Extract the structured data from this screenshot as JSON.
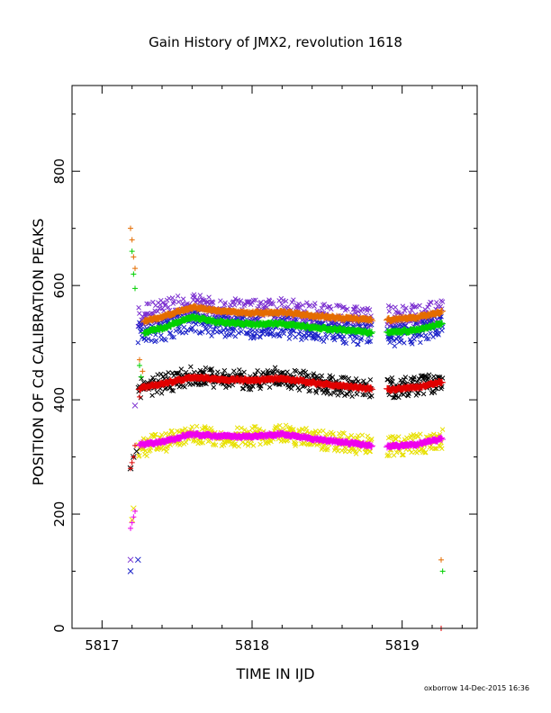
{
  "chart_data": {
    "type": "scatter",
    "title": "Gain History of JMX2, revolution 1618",
    "xlabel": "TIME IN IJD",
    "ylabel": "POSITION OF Cd CALIBRATION PEAKS",
    "footer": "oxborrow 14-Dec-2015 16:36",
    "xlim": [
      5816.8,
      5819.5
    ],
    "ylim": [
      0,
      950
    ],
    "xticks": [
      5817,
      5818,
      5819
    ],
    "xtick_labels": [
      "5817",
      "5818",
      "5819"
    ],
    "yticks": [
      0,
      200,
      400,
      600,
      800
    ],
    "ytick_labels": [
      "0",
      "200",
      "400",
      "600",
      "800"
    ],
    "series": [
      {
        "color": "#e46c00",
        "marker": "plus",
        "x": [
          5817.19,
          5817.2,
          5817.21,
          5817.22,
          5817.25,
          5817.27,
          5819.26
        ],
        "y": [
          700,
          680,
          650,
          630,
          470,
          450,
          120
        ],
        "trend": {
          "start": 5817.28,
          "end": 5819.27,
          "gap": [
            5818.8,
            5818.9
          ],
          "knots": [
            [
              5817.28,
              538
            ],
            [
              5817.4,
              545
            ],
            [
              5817.6,
              562
            ],
            [
              5817.75,
              556
            ],
            [
              5818.0,
              552
            ],
            [
              5818.2,
              553
            ],
            [
              5818.4,
              547
            ],
            [
              5818.6,
              543
            ],
            [
              5818.78,
              540
            ],
            [
              5818.9,
              540
            ],
            [
              5819.1,
              544
            ],
            [
              5819.27,
              554
            ]
          ]
        }
      },
      {
        "color": "#00d000",
        "marker": "plus",
        "x": [
          5817.2,
          5817.21,
          5817.22,
          5817.25,
          5817.26,
          5819.27
        ],
        "y": [
          660,
          620,
          595,
          460,
          440,
          100
        ],
        "trend": {
          "start": 5817.28,
          "end": 5819.27,
          "gap": [
            5818.8,
            5818.9
          ],
          "knots": [
            [
              5817.28,
              518
            ],
            [
              5817.4,
              525
            ],
            [
              5817.6,
              545
            ],
            [
              5817.75,
              537
            ],
            [
              5818.0,
              532
            ],
            [
              5818.2,
              533
            ],
            [
              5818.4,
              527
            ],
            [
              5818.6,
              522
            ],
            [
              5818.78,
              518
            ],
            [
              5818.9,
              518
            ],
            [
              5819.1,
              522
            ],
            [
              5819.27,
              534
            ]
          ]
        }
      },
      {
        "color": "#7b2fd0",
        "marker": "cross",
        "x": [
          5817.19,
          5817.22
        ],
        "y": [
          120,
          390
        ],
        "scatter": {
          "start": 5817.24,
          "end": 5819.27,
          "gap": [
            5818.8,
            5818.9
          ],
          "spread": 25,
          "knots": [
            [
              5817.24,
              548
            ],
            [
              5817.4,
              555
            ],
            [
              5817.6,
              568
            ],
            [
              5817.75,
              560
            ],
            [
              5818.0,
              555
            ],
            [
              5818.2,
              558
            ],
            [
              5818.4,
              550
            ],
            [
              5818.6,
              546
            ],
            [
              5818.78,
              542
            ],
            [
              5818.9,
              545
            ],
            [
              5819.1,
              548
            ],
            [
              5819.27,
              558
            ]
          ]
        }
      },
      {
        "color": "#1a22c8",
        "marker": "cross",
        "x": [
          5817.19,
          5817.24
        ],
        "y": [
          100,
          120
        ],
        "scatter": {
          "start": 5817.24,
          "end": 5819.27,
          "gap": [
            5818.8,
            5818.9
          ],
          "spread": 25,
          "knots": [
            [
              5817.24,
              515
            ],
            [
              5817.4,
              522
            ],
            [
              5817.6,
              540
            ],
            [
              5817.75,
              530
            ],
            [
              5818.0,
              527
            ],
            [
              5818.2,
              528
            ],
            [
              5818.4,
              522
            ],
            [
              5818.6,
              518
            ],
            [
              5818.78,
              514
            ],
            [
              5818.9,
              512
            ],
            [
              5819.1,
              518
            ],
            [
              5819.27,
              530
            ]
          ]
        }
      },
      {
        "color": "#000000",
        "marker": "cross",
        "x": [
          5817.19,
          5817.21,
          5817.23
        ],
        "y": [
          280,
          300,
          310
        ],
        "scatter": {
          "start": 5817.24,
          "end": 5819.27,
          "gap": [
            5818.8,
            5818.9
          ],
          "spread": 22,
          "knots": [
            [
              5817.24,
              420
            ],
            [
              5817.4,
              428
            ],
            [
              5817.6,
              442
            ],
            [
              5817.75,
              436
            ],
            [
              5818.0,
              435
            ],
            [
              5818.2,
              440
            ],
            [
              5818.4,
              430
            ],
            [
              5818.6,
              424
            ],
            [
              5818.78,
              420
            ],
            [
              5818.9,
              420
            ],
            [
              5819.1,
              425
            ],
            [
              5819.27,
              432
            ]
          ]
        }
      },
      {
        "color": "#e00000",
        "marker": "plus",
        "x": [
          5817.19,
          5817.2,
          5817.21,
          5817.22,
          5817.25,
          5819.26
        ],
        "y": [
          280,
          290,
          300,
          320,
          405,
          0
        ],
        "trend": {
          "start": 5817.25,
          "end": 5819.27,
          "gap": [
            5818.8,
            5818.9
          ],
          "knots": [
            [
              5817.25,
              420
            ],
            [
              5817.4,
              428
            ],
            [
              5817.6,
              440
            ],
            [
              5817.75,
              436
            ],
            [
              5818.0,
              434
            ],
            [
              5818.2,
              438
            ],
            [
              5818.4,
              430
            ],
            [
              5818.6,
              424
            ],
            [
              5818.78,
              420
            ],
            [
              5818.9,
              418
            ],
            [
              5819.1,
              422
            ],
            [
              5819.27,
              432
            ]
          ]
        }
      },
      {
        "color": "#e8e000",
        "marker": "cross",
        "x": [
          5817.2,
          5817.21
        ],
        "y": [
          190,
          210
        ],
        "scatter": {
          "start": 5817.24,
          "end": 5819.27,
          "gap": [
            5818.8,
            5818.9
          ],
          "spread": 22,
          "knots": [
            [
              5817.24,
              315
            ],
            [
              5817.4,
              325
            ],
            [
              5817.6,
              342
            ],
            [
              5817.75,
              336
            ],
            [
              5818.0,
              336
            ],
            [
              5818.2,
              340
            ],
            [
              5818.4,
              332
            ],
            [
              5818.6,
              326
            ],
            [
              5818.78,
              320
            ],
            [
              5818.9,
              318
            ],
            [
              5819.1,
              322
            ],
            [
              5819.27,
              332
            ]
          ]
        }
      },
      {
        "color": "#ee00ee",
        "marker": "plus",
        "x": [
          5817.19,
          5817.2,
          5817.21,
          5817.22,
          5817.25
        ],
        "y": [
          175,
          185,
          195,
          205,
          320
        ],
        "trend": {
          "start": 5817.25,
          "end": 5819.27,
          "gap": [
            5818.8,
            5818.9
          ],
          "knots": [
            [
              5817.25,
              322
            ],
            [
              5817.4,
              326
            ],
            [
              5817.6,
              340
            ],
            [
              5817.75,
              336
            ],
            [
              5818.0,
              336
            ],
            [
              5818.2,
              340
            ],
            [
              5818.4,
              332
            ],
            [
              5818.6,
              326
            ],
            [
              5818.78,
              320
            ],
            [
              5818.9,
              318
            ],
            [
              5819.1,
              322
            ],
            [
              5819.27,
              332
            ]
          ]
        }
      }
    ]
  }
}
